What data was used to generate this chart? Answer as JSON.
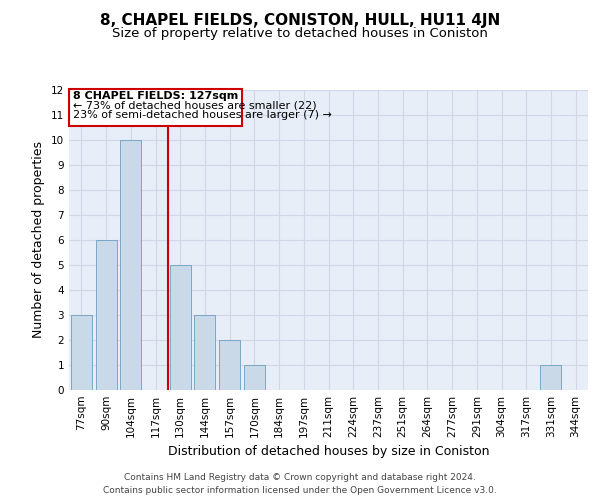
{
  "title": "8, CHAPEL FIELDS, CONISTON, HULL, HU11 4JN",
  "subtitle": "Size of property relative to detached houses in Coniston",
  "xlabel": "Distribution of detached houses by size in Coniston",
  "ylabel": "Number of detached properties",
  "categories": [
    "77sqm",
    "90sqm",
    "104sqm",
    "117sqm",
    "130sqm",
    "144sqm",
    "157sqm",
    "170sqm",
    "184sqm",
    "197sqm",
    "211sqm",
    "224sqm",
    "237sqm",
    "251sqm",
    "264sqm",
    "277sqm",
    "291sqm",
    "304sqm",
    "317sqm",
    "331sqm",
    "344sqm"
  ],
  "values": [
    3,
    6,
    10,
    0,
    5,
    3,
    2,
    1,
    0,
    0,
    0,
    0,
    0,
    0,
    0,
    0,
    0,
    0,
    0,
    1,
    0
  ],
  "bar_color": "#c9d9e8",
  "bar_edge_color": "#6a9ec0",
  "highlight_index": 4,
  "highlight_line_color": "#cc0000",
  "annotation_text_line1": "8 CHAPEL FIELDS: 127sqm",
  "annotation_text_line2": "← 73% of detached houses are smaller (22)",
  "annotation_text_line3": "23% of semi-detached houses are larger (7) →",
  "annotation_box_color": "#cc0000",
  "ylim": [
    0,
    12
  ],
  "yticks": [
    0,
    1,
    2,
    3,
    4,
    5,
    6,
    7,
    8,
    9,
    10,
    11,
    12
  ],
  "grid_color": "#d0d8e8",
  "background_color": "#e8eef8",
  "footer_line1": "Contains HM Land Registry data © Crown copyright and database right 2024.",
  "footer_line2": "Contains public sector information licensed under the Open Government Licence v3.0.",
  "title_fontsize": 11,
  "subtitle_fontsize": 9.5,
  "axis_label_fontsize": 9,
  "tick_fontsize": 7.5,
  "annotation_fontsize": 8,
  "footer_fontsize": 6.5
}
